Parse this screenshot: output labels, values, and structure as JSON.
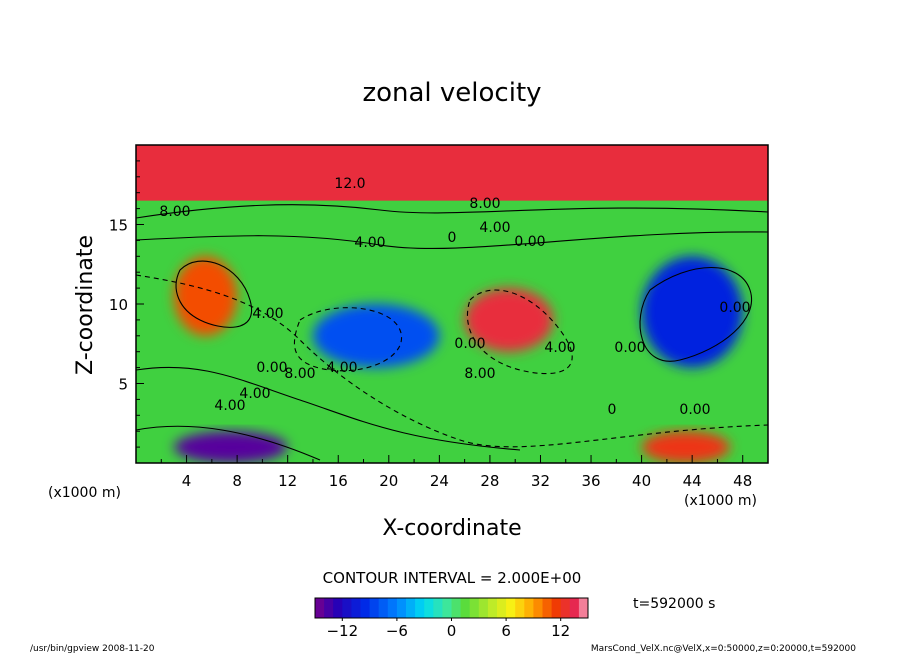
{
  "chart_data": {
    "type": "heatmap",
    "title": "zonal velocity",
    "xlabel": "X-coordinate",
    "ylabel": "Z-coordinate",
    "x_unit": "(x1000 m)",
    "y_unit": "(x1000 m)",
    "xlim": [
      0,
      50
    ],
    "ylim": [
      0,
      20
    ],
    "xticks": [
      "4",
      "8",
      "12",
      "16",
      "20",
      "24",
      "28",
      "32",
      "36",
      "40",
      "44",
      "48"
    ],
    "yticks": [
      "5",
      "10",
      "15"
    ],
    "contour_labels": [
      "12.0",
      "8.00",
      "8.00",
      "4.00",
      "4.00",
      "0.00",
      "4.00",
      "0.00",
      "8.00",
      "4.00",
      "4.00",
      "4.00",
      "0.00",
      "0.00",
      "8.00",
      "4.00",
      "0.00",
      "0.00",
      "0",
      "0"
    ],
    "contour_interval_text": "CONTOUR INTERVAL = 2.000E+00",
    "time_text": "t=592000  s",
    "colorbar": {
      "min": -15,
      "max": 15,
      "ticks": [
        "-12",
        "-6",
        "0",
        "6",
        "12"
      ]
    },
    "footer_left": "/usr/bin/gpview  2008-11-20",
    "footer_right": "MarsCond_VelX.nc@VelX,x=0:50000,z=0:20000,t=592000",
    "features": [
      {
        "name": "upper-jet",
        "x": [
          0,
          50
        ],
        "z": [
          16.5,
          20
        ],
        "value": 13
      },
      {
        "name": "jet-left-max",
        "x": [
          3,
          8
        ],
        "z": [
          8,
          13
        ],
        "value": 11
      },
      {
        "name": "jet-center-max",
        "x": [
          26,
          33
        ],
        "z": [
          7,
          11
        ],
        "value": 13
      },
      {
        "name": "low-left-min",
        "x": [
          3,
          12
        ],
        "z": [
          0,
          2
        ],
        "value": -14
      },
      {
        "name": "left-center-min",
        "x": [
          14,
          24
        ],
        "z": [
          6,
          10
        ],
        "value": -8
      },
      {
        "name": "right-min",
        "x": [
          40,
          48
        ],
        "z": [
          6,
          13
        ],
        "value": -10
      },
      {
        "name": "bottom-right-max",
        "x": [
          40,
          47
        ],
        "z": [
          0,
          2
        ],
        "value": 12
      }
    ]
  }
}
